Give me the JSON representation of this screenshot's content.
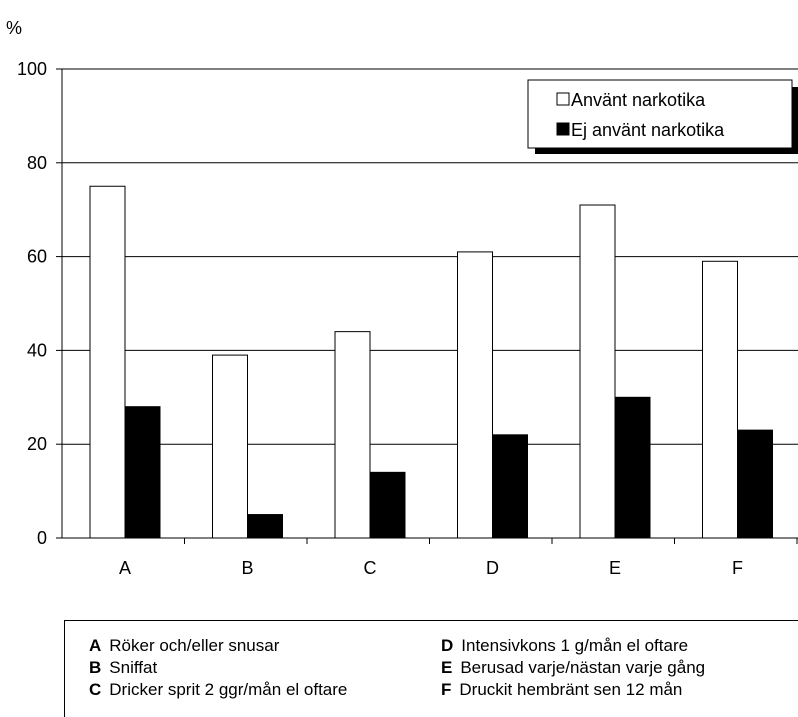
{
  "chart_data": {
    "type": "bar",
    "ylabel": "%",
    "ylim": [
      0,
      100
    ],
    "yticks": [
      0,
      20,
      40,
      60,
      80,
      100
    ],
    "grid": true,
    "categories": [
      "A",
      "B",
      "C",
      "D",
      "E",
      "F"
    ],
    "series": [
      {
        "name": "Använt narkotika",
        "values": [
          75,
          39,
          44,
          61,
          71,
          59
        ],
        "color": "#ffffff"
      },
      {
        "name": "Ej använt narkotika",
        "values": [
          28,
          5,
          14,
          22,
          30,
          23
        ],
        "color": "#000000"
      }
    ],
    "legend_position": "top-right"
  },
  "category_key": [
    {
      "letter": "A",
      "text": "Röker och/eller snusar"
    },
    {
      "letter": "B",
      "text": "Sniffat"
    },
    {
      "letter": "C",
      "text": "Dricker sprit 2 ggr/mån el oftare"
    },
    {
      "letter": "D",
      "text": "Intensivkons 1 g/mån el oftare"
    },
    {
      "letter": "E",
      "text": "Berusad varje/nästan varje gång"
    },
    {
      "letter": "F",
      "text": "Druckit hembränt sen 12 mån"
    }
  ]
}
